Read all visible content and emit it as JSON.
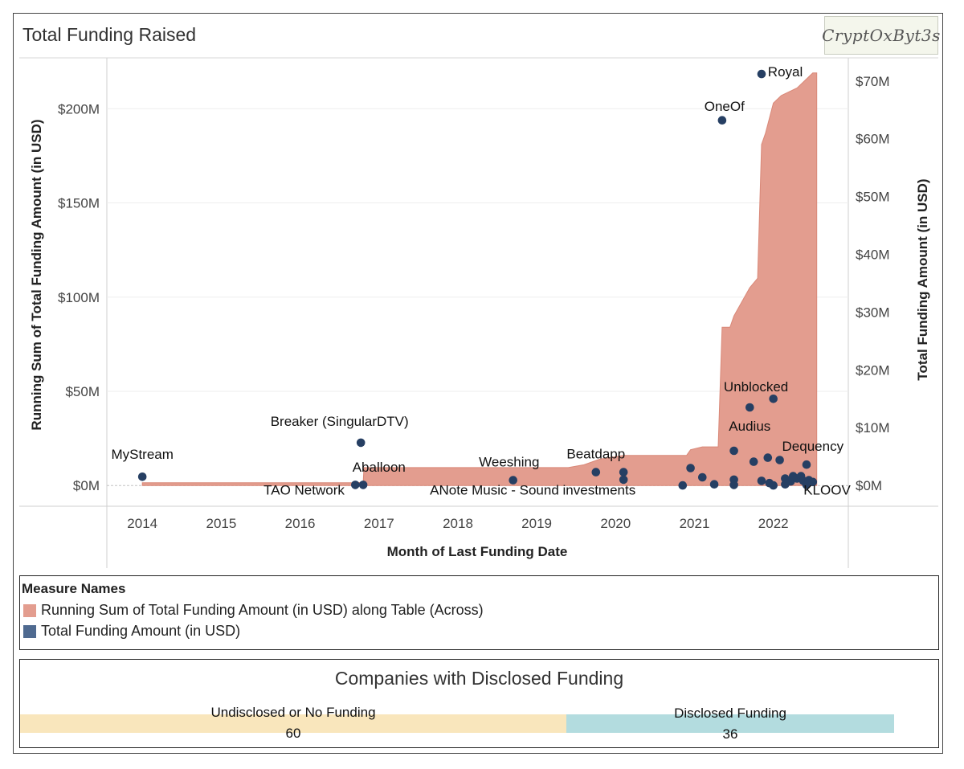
{
  "title": "Total Funding Raised",
  "logo_text": "CryptOxByt3s",
  "colors": {
    "area": "#e39d8f",
    "area_stroke": "#d98878",
    "dot": "#263f63",
    "undisclosed": "#f9e6bc",
    "disclosed": "#b3dcdf"
  },
  "chart_data": {
    "type": "area+scatter",
    "title": "Total Funding Raised",
    "xlabel": "Month of Last Funding Date",
    "ylabel_left": "Running Sum of Total Funding Amount (in USD)",
    "ylabel_right": "Total Funding Amount (in USD)",
    "x_ticks": [
      "2014",
      "2015",
      "2016",
      "2017",
      "2018",
      "2019",
      "2020",
      "2021",
      "2022"
    ],
    "x_range": [
      2013.55,
      2022.95
    ],
    "left_ticks": [
      "$0M",
      "$50M",
      "$100M",
      "$150M",
      "$200M"
    ],
    "left_tick_values": [
      0,
      50,
      100,
      150,
      200
    ],
    "left_range": [
      -11,
      227
    ],
    "right_ticks": [
      "$0M",
      "$10M",
      "$20M",
      "$30M",
      "$40M",
      "$50M",
      "$60M",
      "$70M"
    ],
    "right_tick_values": [
      0,
      10,
      20,
      30,
      40,
      50,
      60,
      70
    ],
    "right_range": [
      -3.6,
      74
    ],
    "running_sum": [
      [
        2014.0,
        1.5
      ],
      [
        2016.7,
        1.5
      ],
      [
        2016.71,
        1.6
      ],
      [
        2016.8,
        1.6
      ],
      [
        2016.81,
        9.5
      ],
      [
        2019.4,
        9.5
      ],
      [
        2019.6,
        11
      ],
      [
        2019.8,
        14
      ],
      [
        2020.1,
        16
      ],
      [
        2020.9,
        16
      ],
      [
        2020.95,
        19
      ],
      [
        2021.1,
        20.5
      ],
      [
        2021.3,
        20.5
      ],
      [
        2021.35,
        84
      ],
      [
        2021.45,
        84
      ],
      [
        2021.5,
        90
      ],
      [
        2021.7,
        105
      ],
      [
        2021.8,
        110
      ],
      [
        2021.85,
        181
      ],
      [
        2021.9,
        187
      ],
      [
        2022.0,
        203
      ],
      [
        2022.1,
        207
      ],
      [
        2022.3,
        211
      ],
      [
        2022.4,
        215
      ],
      [
        2022.5,
        219
      ],
      [
        2022.55,
        219
      ]
    ],
    "funding_points": [
      {
        "x": 2014.0,
        "y": 1.5,
        "label": "MyStream"
      },
      {
        "x": 2016.7,
        "y": 0.1,
        "label": "TAO Network"
      },
      {
        "x": 2016.77,
        "y": 7.4,
        "label": "Breaker (SingularDTV)"
      },
      {
        "x": 2016.8,
        "y": 0.1,
        "label": "Aballoon"
      },
      {
        "x": 2018.7,
        "y": 0.9,
        "label": "ANote Music - Sound investments"
      },
      {
        "x": 2019.75,
        "y": 2.3,
        "label": ""
      },
      {
        "x": 2020.1,
        "y": 2.3,
        "label": "Beatdapp"
      },
      {
        "x": 2020.1,
        "y": 1.0,
        "label": ""
      },
      {
        "x": 2020.85,
        "y": 0.0,
        "label": ""
      },
      {
        "x": 2020.95,
        "y": 3.0,
        "label": "Weeshing"
      },
      {
        "x": 2021.1,
        "y": 1.4,
        "label": ""
      },
      {
        "x": 2021.25,
        "y": 0.2,
        "label": ""
      },
      {
        "x": 2021.35,
        "y": 63.2,
        "label": "OneOf"
      },
      {
        "x": 2021.5,
        "y": 6.0,
        "label": ""
      },
      {
        "x": 2021.5,
        "y": 1.0,
        "label": ""
      },
      {
        "x": 2021.5,
        "y": 0.1,
        "label": ""
      },
      {
        "x": 2021.7,
        "y": 13.5,
        "label": "Audius"
      },
      {
        "x": 2021.75,
        "y": 4.1,
        "label": ""
      },
      {
        "x": 2021.85,
        "y": 71.2,
        "label": "Royal"
      },
      {
        "x": 2021.85,
        "y": 0.8,
        "label": ""
      },
      {
        "x": 2021.93,
        "y": 4.8,
        "label": ""
      },
      {
        "x": 2021.95,
        "y": 0.4,
        "label": ""
      },
      {
        "x": 2022.0,
        "y": 15.0,
        "label": "Unblocked"
      },
      {
        "x": 2022.0,
        "y": 0.0,
        "label": ""
      },
      {
        "x": 2022.08,
        "y": 4.4,
        "label": ""
      },
      {
        "x": 2022.15,
        "y": 1.2,
        "label": ""
      },
      {
        "x": 2022.15,
        "y": 0.2,
        "label": ""
      },
      {
        "x": 2022.22,
        "y": 0.7,
        "label": ""
      },
      {
        "x": 2022.25,
        "y": 1.6,
        "label": ""
      },
      {
        "x": 2022.3,
        "y": 1.2,
        "label": ""
      },
      {
        "x": 2022.35,
        "y": 1.6,
        "label": ""
      },
      {
        "x": 2022.38,
        "y": 0.8,
        "label": ""
      },
      {
        "x": 2022.42,
        "y": 3.6,
        "label": "Dequency"
      },
      {
        "x": 2022.42,
        "y": 0.1,
        "label": ""
      },
      {
        "x": 2022.45,
        "y": 0.9,
        "label": ""
      },
      {
        "x": 2022.5,
        "y": 0.6,
        "label": "KLOOV"
      }
    ],
    "annotations": [
      {
        "text": "MyStream",
        "x": 2014.0,
        "y": 4.6,
        "anchor": "middle"
      },
      {
        "text": "TAO Network",
        "x": 2016.05,
        "y": -1.6,
        "anchor": "middle"
      },
      {
        "text": "Breaker (SingularDTV)",
        "x": 2016.5,
        "y": 10.3,
        "anchor": "middle"
      },
      {
        "text": "Aballoon",
        "x": 2017.0,
        "y": 2.4,
        "anchor": "middle"
      },
      {
        "text": "ANote Music - Sound investments",
        "x": 2018.95,
        "y": -1.6,
        "anchor": "middle"
      },
      {
        "text": "Weeshing",
        "x": 2018.65,
        "y": 3.3,
        "anchor": "middle"
      },
      {
        "text": "Beatdapp",
        "x": 2019.75,
        "y": 4.7,
        "anchor": "middle"
      },
      {
        "text": "OneOf",
        "x": 2021.38,
        "y": 64.8,
        "anchor": "middle"
      },
      {
        "text": "Royal",
        "x": 2021.93,
        "y": 70.8,
        "anchor": "start"
      },
      {
        "text": "Unblocked",
        "x": 2021.78,
        "y": 16.3,
        "anchor": "middle"
      },
      {
        "text": "Audius",
        "x": 2021.7,
        "y": 9.5,
        "anchor": "middle"
      },
      {
        "text": "Dequency",
        "x": 2022.5,
        "y": 6.0,
        "anchor": "middle"
      },
      {
        "text": "KLOOV",
        "x": 2022.68,
        "y": -1.6,
        "anchor": "middle"
      }
    ]
  },
  "legend": {
    "title": "Measure Names",
    "items": [
      {
        "label": "Running Sum of Total Funding Amount (in USD) along Table (Across)",
        "color": "#e39d8f"
      },
      {
        "label": "Total Funding Amount (in USD)",
        "color": "#4f6a90"
      }
    ]
  },
  "summary": {
    "title": "Companies with Disclosed Funding",
    "segments": [
      {
        "label": "Undisclosed or No Funding",
        "value": "60",
        "count": 60,
        "color": "#f9e6bc"
      },
      {
        "label": "Disclosed Funding",
        "value": "36",
        "count": 36,
        "color": "#b3dcdf"
      }
    ]
  }
}
